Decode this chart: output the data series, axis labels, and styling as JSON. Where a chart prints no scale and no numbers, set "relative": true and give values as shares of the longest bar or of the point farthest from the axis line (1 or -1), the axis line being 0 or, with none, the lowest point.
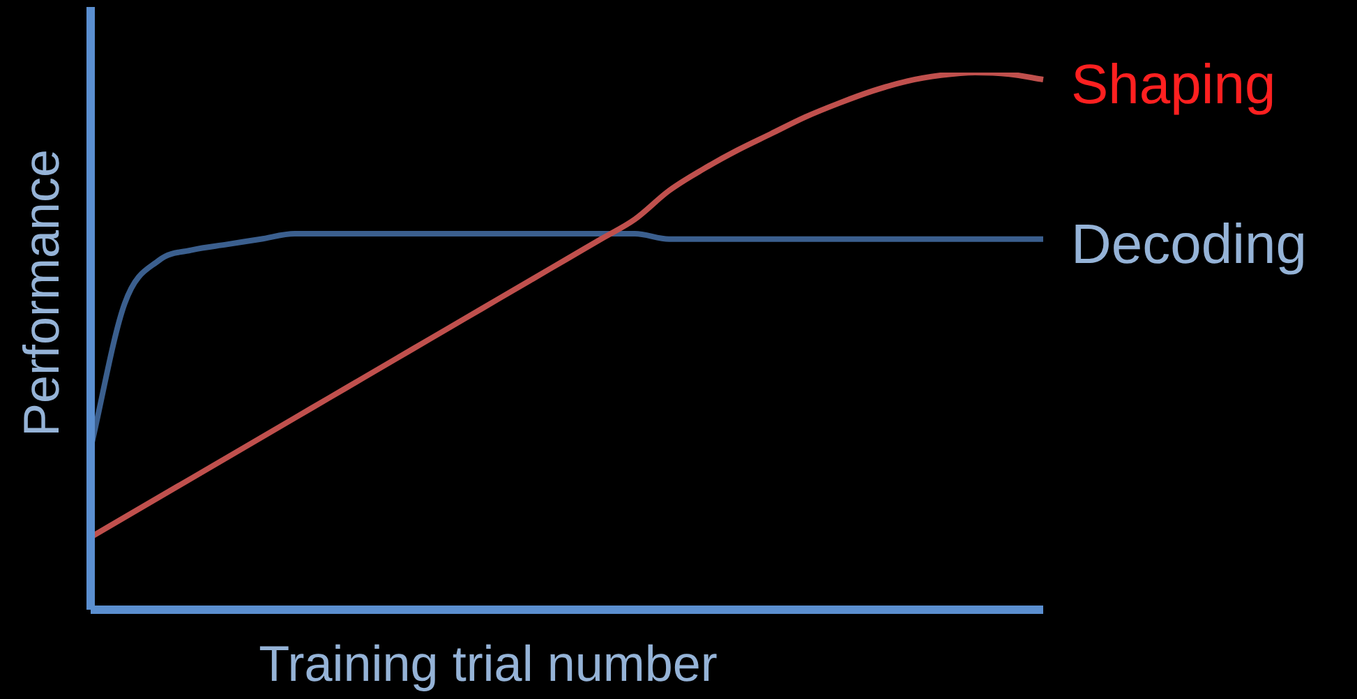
{
  "chart_data": {
    "type": "line",
    "relative": true,
    "xlabel": "Training trial number",
    "ylabel": "Performance",
    "legend": false,
    "marker": "none",
    "line_style": "solid",
    "categories": [
      null,
      null,
      null,
      null,
      null,
      null,
      null,
      null,
      null,
      null,
      null,
      null,
      null,
      null,
      null,
      null,
      null,
      null,
      null,
      null,
      null,
      null,
      null,
      null,
      null,
      null,
      null,
      null,
      null
    ],
    "series": [
      {
        "name": "Shaping",
        "color": "#c0504d",
        "values": [
          0.135,
          0.172,
          0.209,
          0.246,
          0.283,
          0.32,
          0.357,
          0.394,
          0.431,
          0.468,
          0.505,
          0.542,
          0.579,
          0.616,
          0.653,
          0.69,
          0.727,
          0.78,
          0.82,
          0.855,
          0.886,
          0.917,
          0.943,
          0.966,
          0.984,
          0.995,
          1.0,
          0.997,
          0.987
        ]
      },
      {
        "name": "Decoding",
        "color": "#3b5f8e",
        "values": [
          0.3,
          0.57,
          0.65,
          0.67,
          0.68,
          0.69,
          0.7,
          0.7,
          0.7,
          0.7,
          0.7,
          0.7,
          0.7,
          0.7,
          0.7,
          0.7,
          0.7,
          0.69,
          0.69,
          0.69,
          0.69,
          0.69,
          0.69,
          0.69,
          0.69,
          0.69,
          0.69,
          0.69,
          0.69
        ]
      }
    ]
  }
}
